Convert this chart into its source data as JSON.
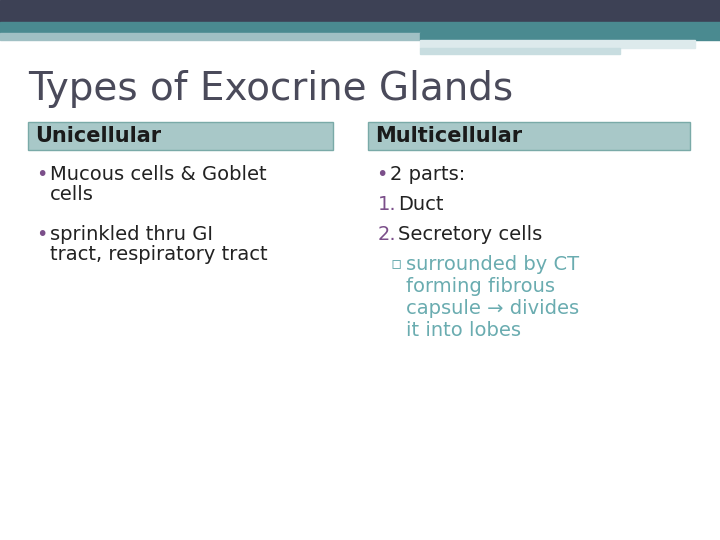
{
  "title": "Types of Exocrine Glands",
  "title_fontsize": 28,
  "title_color": "#4a4a5a",
  "title_font": "Georgia",
  "background_color": "#ffffff",
  "header_bg_color": "#a8c8c8",
  "header_border_color": "#7aaaa8",
  "header_text_color": "#1a1a1a",
  "header_fontsize": 15,
  "col1_header": "Unicellular",
  "col2_header": "Multicellular",
  "col1_bullet_color": "#222222",
  "col2_bullet_color": "#222222",
  "col2_numbered_color": "#7b4f8a",
  "col2_sub_color": "#6aacb0",
  "top_bar_dark_color": "#3d4155",
  "top_bar_teal_color": "#4a8a90",
  "top_bar_light_color": "#a0c0c4",
  "top_bar_white_color": "#ddeaec",
  "body_fontsize": 14,
  "body_font": "Georgia",
  "bullet_color": "#7b4f8a"
}
